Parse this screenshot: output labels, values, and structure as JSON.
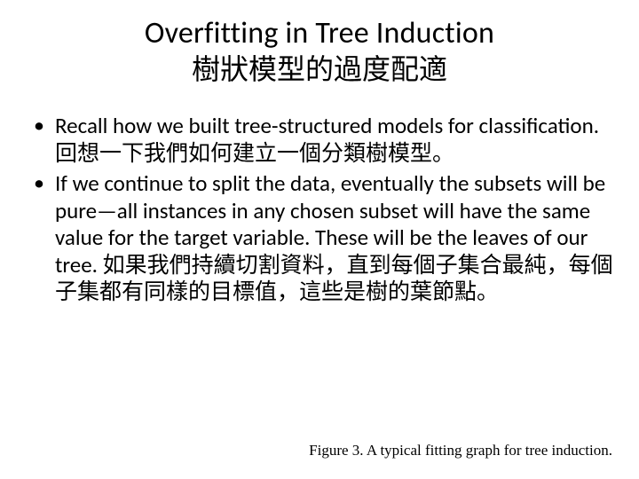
{
  "title": {
    "en": "Overfitting in Tree Induction",
    "zh": "樹狀模型的過度配適"
  },
  "bullets": [
    "Recall how we built tree-structured models for classification. 回想一下我們如何建立一個分類樹模型。",
    "If we continue to split the data, eventually the subsets will be pure—all instances in any chosen subset will have the same value for the target variable. These will be the leaves of our tree. 如果我們持續切割資料，直到每個子集合最純，每個子集都有同樣的目標值，這些是樹的葉節點。"
  ],
  "figure_caption": "Figure 3. A typical fitting graph for tree induction."
}
